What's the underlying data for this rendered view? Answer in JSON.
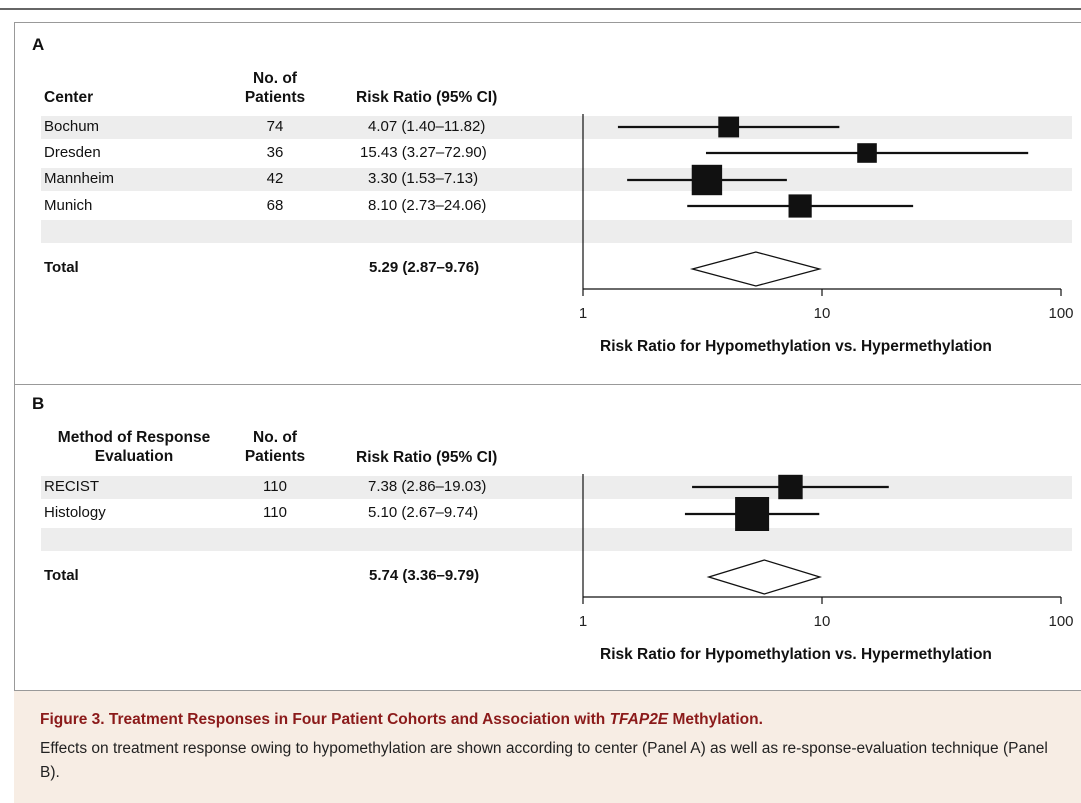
{
  "caption": {
    "title_prefix": "Figure 3. Treatment Responses in Four Patient Cohorts and Association with ",
    "title_gene": "TFAP2E",
    "title_suffix": " Methylation.",
    "body": "Effects on treatment response owing to hypomethylation are shown according to center (Panel A) as well as re-sponse-evaluation technique (Panel B)."
  },
  "chart_data": [
    {
      "type": "forest",
      "panel": "A",
      "columns": {
        "group": "Center",
        "n": "No. of Patients",
        "rr": "Risk Ratio (95% CI)"
      },
      "xlabel": "Risk Ratio for Hypomethylation vs. Hypermethylation",
      "xscale": "log",
      "xlim": [
        1,
        100
      ],
      "xticks": [
        "1",
        "10",
        "100"
      ],
      "rows": [
        {
          "label": "Bochum",
          "n": "74",
          "rr_text": "4.07 (1.40–11.82)",
          "rr": 4.07,
          "lo": 1.4,
          "hi": 11.82,
          "weight": 0.45
        },
        {
          "label": "Dresden",
          "n": "36",
          "rr_text": "15.43 (3.27–72.90)",
          "rr": 15.43,
          "lo": 3.27,
          "hi": 72.9,
          "weight": 0.4
        },
        {
          "label": "Mannheim",
          "n": "42",
          "rr_text": "3.30 (1.53–7.13)",
          "rr": 3.3,
          "lo": 1.53,
          "hi": 7.13,
          "weight": 0.85
        },
        {
          "label": "Munich",
          "n": "68",
          "rr_text": "8.10 (2.73–24.06)",
          "rr": 8.1,
          "lo": 2.73,
          "hi": 24.06,
          "weight": 0.55
        }
      ],
      "total": {
        "label": "Total",
        "rr_text": "5.29 (2.87–9.76)",
        "rr": 5.29,
        "lo": 2.87,
        "hi": 9.76
      }
    },
    {
      "type": "forest",
      "panel": "B",
      "columns": {
        "group": "Method of Response Evaluation",
        "n": "No. of Patients",
        "rr": "Risk Ratio (95% CI)"
      },
      "xlabel": "Risk Ratio for Hypomethylation vs. Hypermethylation",
      "xscale": "log",
      "xlim": [
        1,
        100
      ],
      "xticks": [
        "1",
        "10",
        "100"
      ],
      "rows": [
        {
          "label": "RECIST",
          "n": "110",
          "rr_text": "7.38 (2.86–19.03)",
          "rr": 7.38,
          "lo": 2.86,
          "hi": 19.03,
          "weight": 0.6
        },
        {
          "label": "Histology",
          "n": "110",
          "rr_text": "5.10 (2.67–9.74)",
          "rr": 5.1,
          "lo": 2.67,
          "hi": 9.74,
          "weight": 1.0
        }
      ],
      "total": {
        "label": "Total",
        "rr_text": "5.74 (3.36–9.79)",
        "rr": 5.74,
        "lo": 3.36,
        "hi": 9.79
      }
    }
  ]
}
